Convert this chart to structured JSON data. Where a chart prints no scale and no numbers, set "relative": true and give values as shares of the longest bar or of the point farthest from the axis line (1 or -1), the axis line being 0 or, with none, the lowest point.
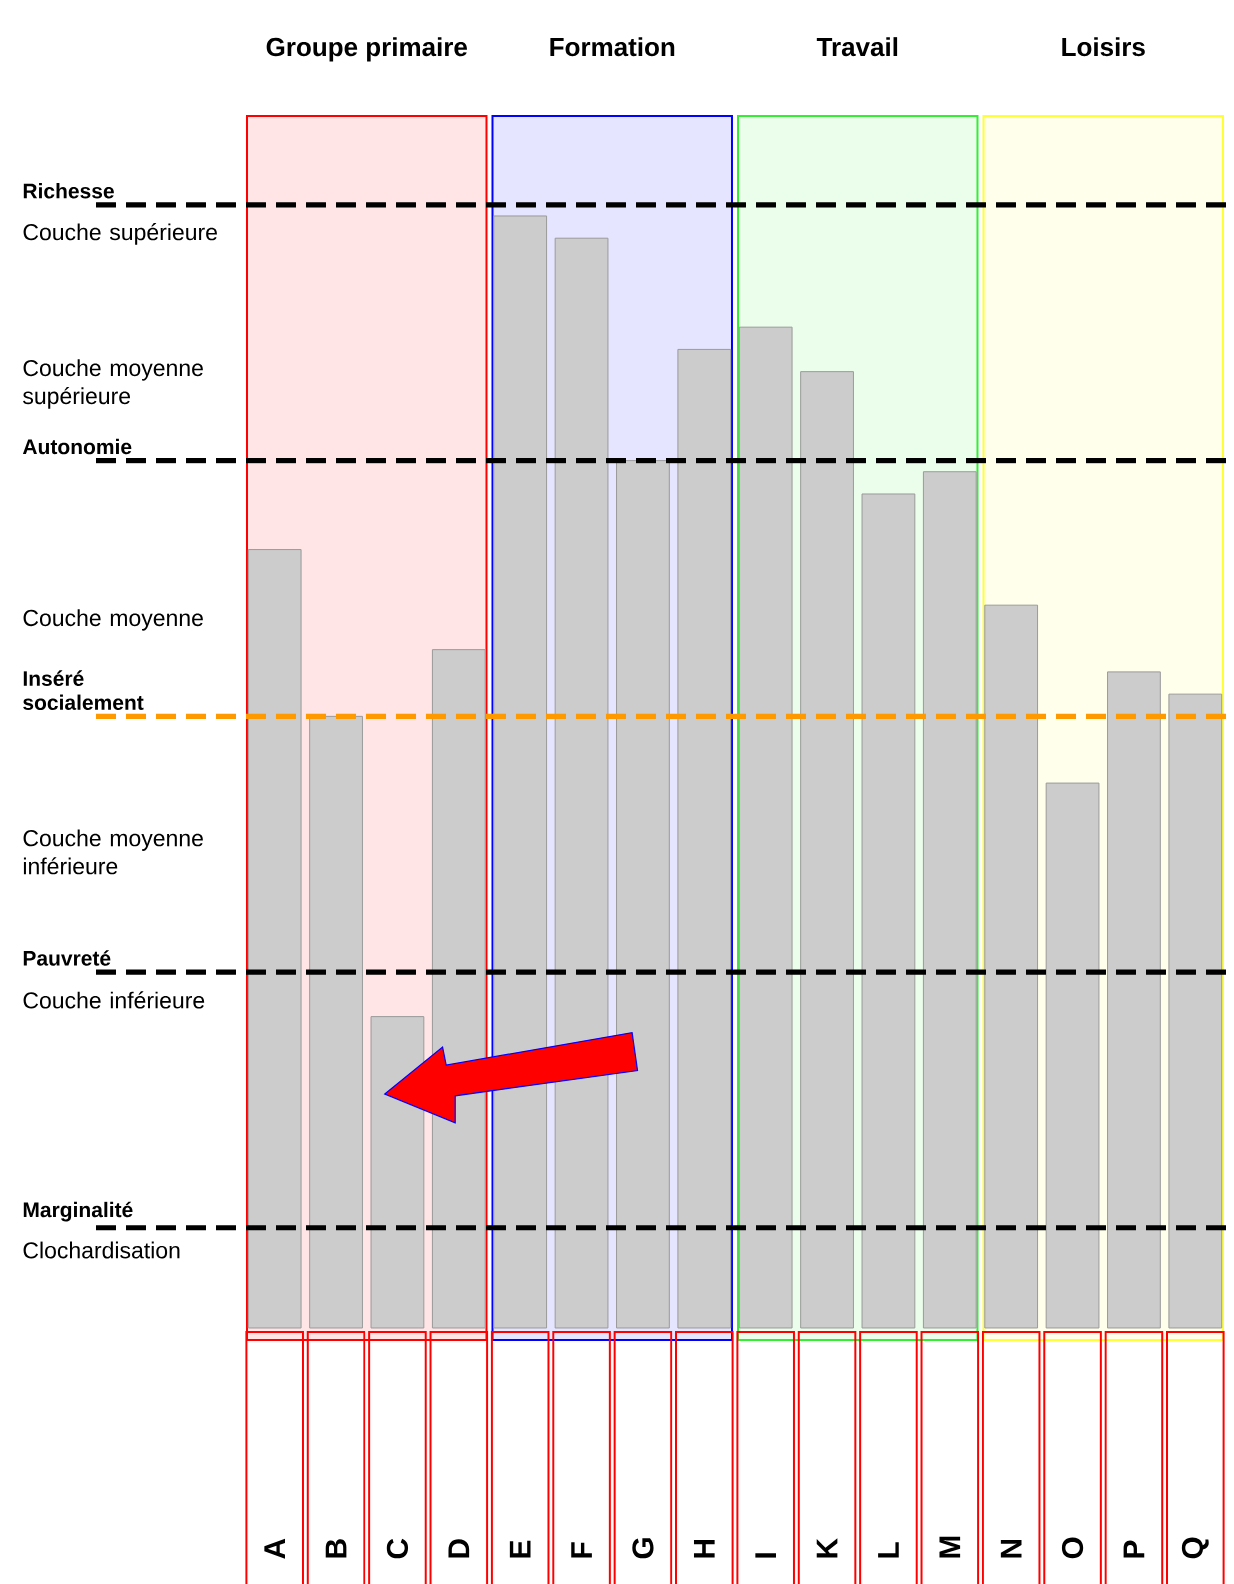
{
  "chart_data": {
    "type": "bar",
    "relative": true,
    "categories": [
      "A",
      "B",
      "C",
      "D",
      "E",
      "F",
      "G",
      "H",
      "I",
      "K",
      "L",
      "M",
      "N",
      "O",
      "P",
      "Q"
    ],
    "values": [
      0.7,
      0.55,
      0.28,
      0.61,
      1,
      0.98,
      0.78,
      0.88,
      0.9,
      0.86,
      0.75,
      0.77,
      0.65,
      0.49,
      0.59,
      0.57
    ],
    "color": "#cccccc",
    "bands": [
      {
        "axis": "x",
        "from": "A",
        "to": "D",
        "label": "Groupe primaire",
        "color": "#ff0000"
      },
      {
        "axis": "x",
        "from": "E",
        "to": "H",
        "label": "Formation",
        "color": "#0000ff"
      },
      {
        "axis": "x",
        "from": "I",
        "to": "M",
        "label": "Travail",
        "color": "#33ee33"
      },
      {
        "axis": "x",
        "from": "N",
        "to": "Q",
        "label": "Loisirs",
        "color": "#ffff33"
      }
    ],
    "ref_lines": [
      {
        "axis": "y",
        "value": 1.01,
        "label": "Richesse",
        "color": "#000000",
        "line_style": "dashed"
      },
      {
        "axis": "y",
        "value": 0.78,
        "label": "Autonomie",
        "color": "#000000",
        "line_style": "dashed"
      },
      {
        "axis": "y",
        "value": 0.55,
        "label": "Inséré socialement",
        "color": "#ff9900",
        "line_style": "dashed"
      },
      {
        "axis": "y",
        "value": 0.32,
        "label": "Pauvreté",
        "color": "#000000",
        "line_style": "dashed"
      },
      {
        "axis": "y",
        "value": 0.09,
        "label": "Marginalité",
        "color": "#000000",
        "line_style": "dashed"
      }
    ],
    "annotations": [
      "Couche supérieure",
      "Couche moyenne supérieure",
      "Couche moyenne",
      "Couche moyenne inférieure",
      "Couche inférieure",
      "Clochardisation"
    ]
  }
}
